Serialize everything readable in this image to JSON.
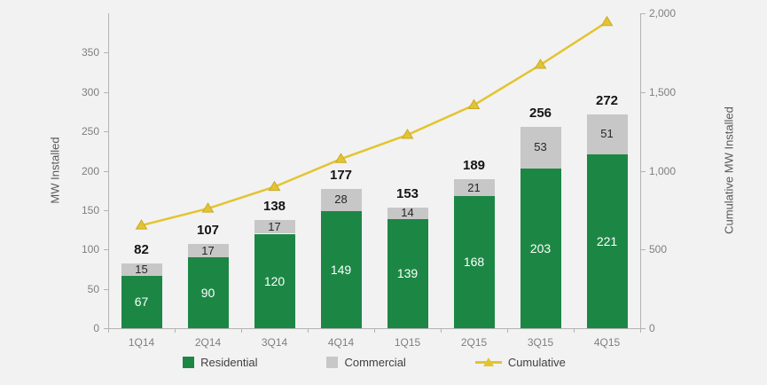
{
  "chart_data": {
    "type": "bar",
    "title": "",
    "categories": [
      "1Q14",
      "2Q14",
      "3Q14",
      "4Q14",
      "1Q15",
      "2Q15",
      "3Q15",
      "4Q15"
    ],
    "series": [
      {
        "name": "Residential",
        "type": "bar",
        "color": "#1c8745",
        "values": [
          67,
          90,
          120,
          149,
          139,
          168,
          203,
          221
        ]
      },
      {
        "name": "Commercial",
        "type": "bar",
        "color": "#c7c7c7",
        "values": [
          15,
          17,
          17,
          28,
          14,
          21,
          53,
          51
        ]
      },
      {
        "name": "Cumulative",
        "type": "line",
        "color": "#e3c430",
        "marker_stroke": "#c9a92b",
        "axis": "right",
        "values": [
          653,
          760,
          898,
          1075,
          1228,
          1417,
          1673,
          1945
        ]
      }
    ],
    "totals": [
      82,
      107,
      138,
      177,
      153,
      189,
      256,
      272
    ],
    "ylabel_left": "MW Installed",
    "ylabel_right": "Cumulative MW Installed",
    "left_axis": {
      "ticks": [
        0,
        50,
        100,
        150,
        200,
        250,
        300,
        350
      ],
      "max": 400
    },
    "right_axis": {
      "ticks": [
        0,
        500,
        1000,
        1500,
        2000
      ],
      "max": 2000
    },
    "grid": false,
    "legend_position": "bottom",
    "background_color": "#f2f2f2"
  }
}
